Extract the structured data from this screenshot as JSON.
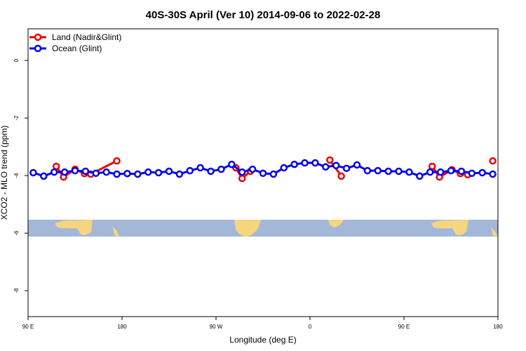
{
  "chart_data": {
    "type": "line",
    "title": "40S-30S April (Ver 10)   2014-09-06 to 2022-02-28",
    "x_label": "Longitude (deg E)",
    "y_label": "XCO2 - MLO trend (ppm)",
    "xlim": [
      90,
      540
    ],
    "ylim": [
      -8.9,
      1.1
    ],
    "xticks": [
      {
        "value": 90,
        "label": "90 E"
      },
      180,
      {
        "value": 270,
        "label": "90 W"
      },
      {
        "value": 360,
        "label": "0"
      },
      {
        "value": 450,
        "label": "90 E"
      },
      {
        "value": 540,
        "label": "180"
      }
    ],
    "yticks": [
      0,
      -2,
      -4,
      -6,
      -8
    ],
    "legend": "top-left",
    "series": [
      {
        "name": "Land (Nadir&Glint)",
        "color": "#ee0000",
        "x": [
          117,
          124,
          135,
          144,
          150,
          175,
          null,
          289,
          295,
          303,
          null,
          379,
          390,
          null,
          477,
          484,
          496,
          504,
          511,
          null,
          535
        ],
        "values": [
          -3.68,
          -4.05,
          -3.78,
          -3.93,
          -3.95,
          -3.49,
          null,
          -3.73,
          -4.1,
          -3.85,
          null,
          -3.46,
          -4.02,
          null,
          -3.68,
          -4.05,
          -3.8,
          -3.93,
          -3.97,
          null,
          -3.49
        ]
      },
      {
        "name": "Ocean (Glint)",
        "color": "#0000ee",
        "x": [
          95,
          105,
          115,
          125,
          135,
          145,
          155,
          165,
          175,
          185,
          195,
          205,
          215,
          225,
          235,
          245,
          255,
          265,
          275,
          285,
          295,
          305,
          315,
          325,
          335,
          345,
          355,
          365,
          375,
          385,
          395,
          405,
          415,
          425,
          435,
          445,
          455,
          465,
          475,
          485,
          495,
          505,
          515,
          525,
          535
        ],
        "values": [
          -3.9,
          -4.02,
          -3.88,
          -3.88,
          -3.83,
          -3.85,
          -3.92,
          -3.88,
          -3.95,
          -3.93,
          -3.95,
          -3.88,
          -3.9,
          -3.85,
          -3.95,
          -3.83,
          -3.73,
          -3.85,
          -3.78,
          -3.61,
          -3.88,
          -3.78,
          -3.92,
          -3.95,
          -3.73,
          -3.61,
          -3.56,
          -3.56,
          -3.7,
          -3.65,
          -3.75,
          -3.63,
          -3.83,
          -3.83,
          -3.85,
          -3.85,
          -3.88,
          -4.02,
          -3.88,
          -3.88,
          -3.83,
          -3.85,
          -3.92,
          -3.9,
          -3.95
        ]
      }
    ]
  }
}
